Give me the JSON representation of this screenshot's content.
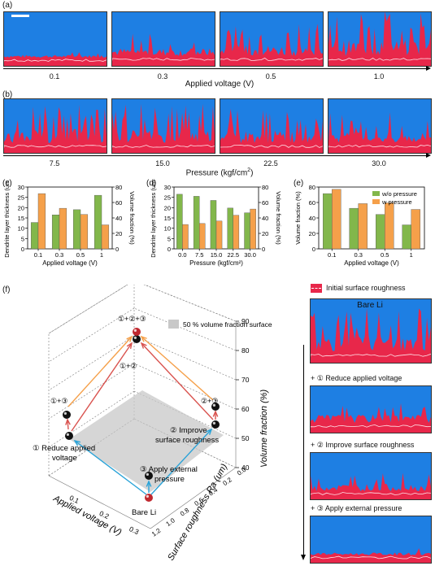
{
  "panels": {
    "a": {
      "label": "(a)",
      "tick_labels": [
        "0.1",
        "0.3",
        "0.5",
        "1.0"
      ],
      "axis_title": "Applied voltage (V)"
    },
    "b": {
      "label": "(b)",
      "tick_labels": [
        "7.5",
        "15.0",
        "22.5",
        "30.0"
      ],
      "axis_title": "Pressure (kgf/cm",
      "axis_title_sup": "2",
      "axis_title_end": ")"
    },
    "c": {
      "label": "(c)"
    },
    "d": {
      "label": "(d)"
    },
    "e": {
      "label": "(e)"
    },
    "f": {
      "label": "(f)"
    }
  },
  "chart_data": [
    {
      "id": "c",
      "type": "bar",
      "categories": [
        "0.1",
        "0.3",
        "0.5",
        "1"
      ],
      "xlabel": "Applied voltage (V)",
      "ylabel": "Dendrite layer thickness (um)",
      "y2label": "Volume fraction (%)",
      "ylim": [
        0,
        30
      ],
      "y2lim": [
        0,
        80
      ],
      "yticks": [
        "0",
        "5",
        "10",
        "15",
        "20",
        "25",
        "30"
      ],
      "y2ticks": [
        "0",
        "20",
        "40",
        "60",
        "80"
      ],
      "series": [
        {
          "axis": "left",
          "color": "#82b74b",
          "values": [
            12.8,
            16.5,
            19.0,
            26.0
          ]
        },
        {
          "axis": "right",
          "color": "#f5a04a",
          "values": [
            71.5,
            52.5,
            44.5,
            31.0
          ]
        }
      ]
    },
    {
      "id": "d",
      "type": "bar",
      "categories": [
        "0.0",
        "7.5",
        "15.0",
        "22.5",
        "30.0"
      ],
      "xlabel": "Pressure (kgf/cm2)",
      "ylabel": "Dendrite layer thickness (um)",
      "y2label": "Volume fraction (%)",
      "ylim": [
        0,
        30
      ],
      "y2lim": [
        0,
        80
      ],
      "yticks": [
        "0",
        "5",
        "10",
        "15",
        "20",
        "25",
        "30"
      ],
      "y2ticks": [
        "0",
        "20",
        "40",
        "60",
        "80"
      ],
      "series": [
        {
          "axis": "left",
          "color": "#82b74b",
          "values": [
            26.5,
            25.5,
            23.5,
            19.8,
            17.5
          ]
        },
        {
          "axis": "right",
          "color": "#f5a04a",
          "values": [
            31.5,
            32.8,
            36.0,
            43.5,
            51.5
          ]
        }
      ]
    },
    {
      "id": "e",
      "type": "bar",
      "categories": [
        "0.1",
        "0.3",
        "0.5",
        "1"
      ],
      "xlabel": "Applied voltage (V)",
      "ylabel": "Volume fraction (%)",
      "ylim": [
        0,
        80
      ],
      "yticks": [
        "0",
        "20",
        "40",
        "60",
        "80"
      ],
      "legend": "top-right",
      "series": [
        {
          "name": "w/o pressure",
          "color": "#82b74b",
          "values": [
            71.5,
            52.5,
            44.5,
            31.0
          ]
        },
        {
          "name": "w pressure",
          "color": "#f5a04a",
          "values": [
            77.0,
            58.5,
            59.5,
            51.0
          ]
        }
      ]
    },
    {
      "id": "f",
      "type": "scatter",
      "xlabel": "Applied voltage (V)",
      "ylabel": "Surface roughness Ra (um)",
      "zlabel": "Volume fraction (%)",
      "zticks": [
        "40",
        "50",
        "60",
        "70",
        "80",
        "90"
      ],
      "xticks": [
        "0.1",
        "0.2",
        "0.3"
      ],
      "yticks": [
        "0.0",
        "0.2",
        "0.4",
        "0.6",
        "0.8",
        "1.0",
        "1.2"
      ],
      "legend_item": "50 % volume fraction surface",
      "points": [
        {
          "label": "Bare Li",
          "color": "#c0282f"
        },
        {
          "label": "① Reduce applied voltage",
          "color": "#111111"
        },
        {
          "label": "② Improve surface roughness",
          "color": "#111111"
        },
        {
          "label": "③ Apply external pressure",
          "color": "#111111"
        },
        {
          "label": "①+②",
          "color": "#111111"
        },
        {
          "label": "①+③",
          "color": "#111111"
        },
        {
          "label": "②+③",
          "color": "#111111"
        },
        {
          "label": "①+②+③",
          "color": "#c0282f"
        }
      ],
      "annotations": {
        "bare": "Bare Li",
        "p1a": "① Reduce applied",
        "p1b": "voltage",
        "p2a": "② Improve",
        "p2b": "surface roughness",
        "p3a": "③ Apply external",
        "p3b": "pressure",
        "p12": "①+②",
        "p13": "①+③",
        "p23": "②+③",
        "p123": "①+②+③"
      }
    }
  ],
  "side_panel": {
    "legend": "Initial surface roughness",
    "bare": "Bare Li",
    "steps": [
      "+ ① Reduce applied voltage",
      "+ ② Improve surface roughness",
      "+ ③ Apply external pressure"
    ]
  }
}
